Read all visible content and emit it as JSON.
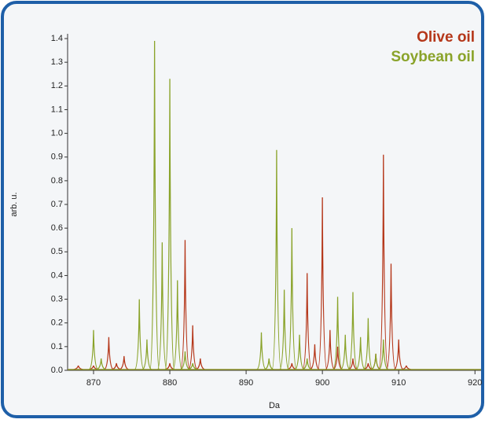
{
  "chart_data": {
    "type": "spectrum",
    "xlabel": "Da",
    "ylabel": "arb. u.",
    "xlim": [
      866.6,
      920.8
    ],
    "ylim": [
      0,
      1.42
    ],
    "xticks": [
      870,
      880,
      890,
      900,
      910,
      920
    ],
    "yticks": [
      {
        "value": 0,
        "label": "0.0"
      },
      0.1,
      0.2,
      0.3,
      0.4,
      0.5,
      0.6,
      0.7,
      0.8,
      0.9,
      {
        "value": 1,
        "label": "1.0"
      },
      1.1,
      1.2,
      1.3,
      1.4
    ],
    "legend": "top-right",
    "series": [
      {
        "name": "Olive oil",
        "color": "#b5371a",
        "x": [
          868,
          870,
          872,
          873,
          874,
          880,
          882,
          883,
          884,
          896,
          898,
          899,
          900,
          901,
          902,
          904,
          906,
          907,
          908,
          909,
          910,
          911
        ],
        "values": [
          0.02,
          0.02,
          0.14,
          0.03,
          0.06,
          0.03,
          0.55,
          0.19,
          0.05,
          0.03,
          0.41,
          0.11,
          0.73,
          0.17,
          0.1,
          0.05,
          0.03,
          0.07,
          0.91,
          0.45,
          0.13,
          0.02
        ]
      },
      {
        "name": "Soybean oil",
        "color": "#8aa32a",
        "x": [
          870,
          871,
          876,
          877,
          878,
          879,
          880,
          881,
          882,
          883,
          892,
          893,
          894,
          895,
          896,
          897,
          898,
          902,
          903,
          904,
          905,
          906,
          907,
          908
        ],
        "values": [
          0.17,
          0.05,
          0.3,
          0.13,
          1.39,
          0.54,
          1.23,
          0.38,
          0.08,
          0.03,
          0.16,
          0.05,
          0.93,
          0.34,
          0.6,
          0.15,
          0.05,
          0.31,
          0.15,
          0.33,
          0.14,
          0.22,
          0.07,
          0.13
        ]
      }
    ]
  }
}
